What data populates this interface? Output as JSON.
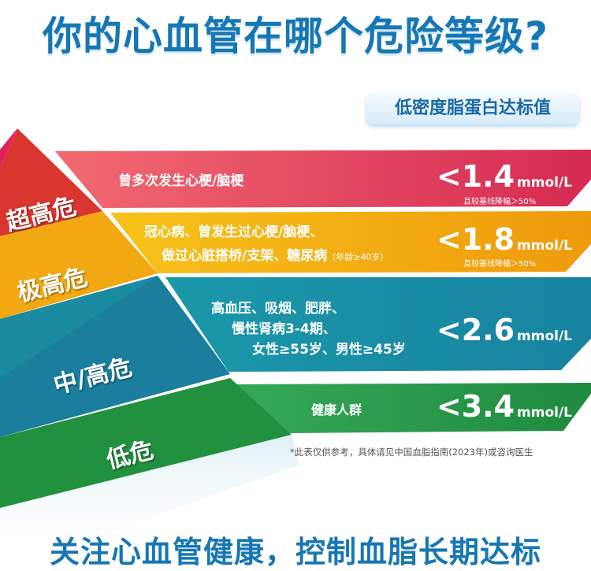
{
  "title": "你的心血管在哪个危险等级?",
  "badge": "低密度脂蛋白达标值",
  "colors": {
    "title": "#1677b3",
    "very_high_plus": "#e0405a",
    "very_high": "#f2a812",
    "mid_high": "#1a8fa3",
    "low": "#2a9a4a"
  },
  "levels": [
    {
      "label": "超高危",
      "desc": [
        "曾多次发生心梗/脑梗"
      ],
      "value": "<1.4",
      "unit": "mmol/L",
      "note": "且较基线降幅＞50%"
    },
    {
      "label": "极高危",
      "desc": [
        "冠心病、曾发生过心梗/脑梗、",
        "做过心脏搭桥/支架、糖尿病"
      ],
      "desc_small": "（年龄≥40岁）",
      "value": "<1.8",
      "unit": "mmol/L",
      "note": "且较基线降幅＞50%"
    },
    {
      "label": "中/高危",
      "desc": [
        "高血压、吸烟、肥胖、",
        "慢性肾病3-4期、",
        "女性≥55岁、男性≥45岁"
      ],
      "value": "<2.6",
      "unit": "mmol/L"
    },
    {
      "label": "低危",
      "desc": [
        "健康人群"
      ],
      "value": "<3.4",
      "unit": "mmol/L"
    }
  ],
  "footnote": "*此表仅供参考，具体请见中国血脂指南(2023年)或咨询医生",
  "slogan": "关注心血管健康，控制血脂长期达标"
}
